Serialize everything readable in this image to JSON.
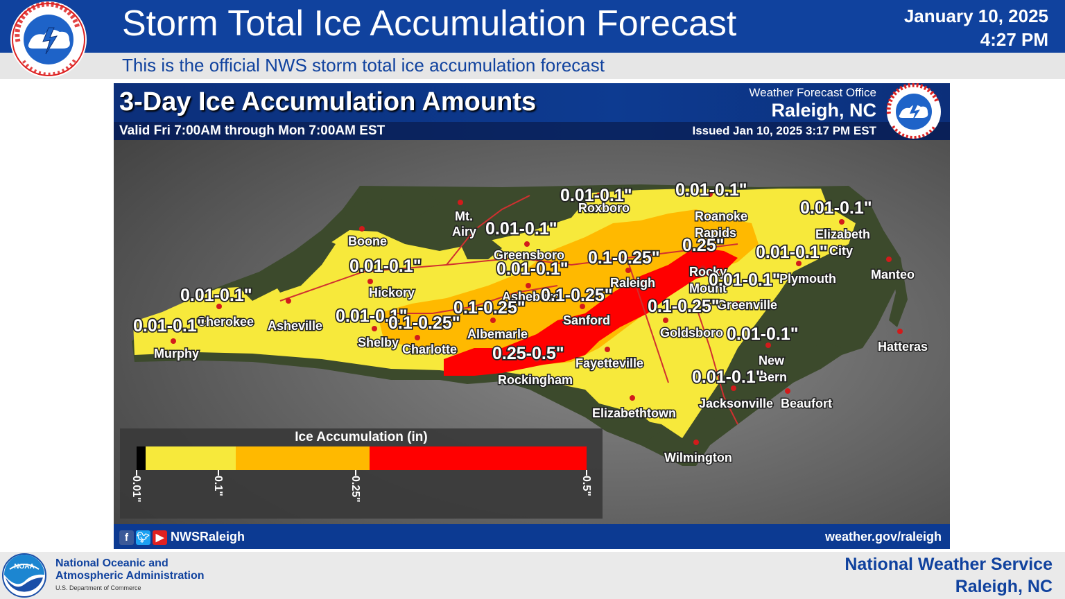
{
  "banner": {
    "title": "Storm Total Ice Accumulation Forecast",
    "date": "January 10, 2025",
    "time": "4:27 PM",
    "subtitle": "This is the official NWS storm total ice accumulation forecast",
    "color": "#10429e"
  },
  "graphic": {
    "title": "3-Day Ice Accumulation Amounts",
    "valid": "Valid Fri 7:00AM through Mon 7:00AM EST",
    "office_label": "Weather Forecast Office",
    "office_city": "Raleigh, NC",
    "issued": "Issued Jan 10, 2025 3:17 PM EST",
    "social_handle": "NWSRaleigh",
    "website": "weather.gov/raleigh",
    "social_icons": [
      "facebook-icon",
      "twitter-icon",
      "youtube-icon"
    ]
  },
  "map": {
    "cities": [
      "Mt.",
      "Airy",
      "Boone",
      "Roxboro",
      "Roanoke",
      "Rapids",
      "Elizabeth",
      "City",
      "Greensboro",
      "Hickory",
      "Raleigh",
      "Rocky",
      "Mount",
      "Plymouth",
      "Manteo",
      "Asheboro",
      "Greenville",
      "Cherokee",
      "Asheville",
      "Sanford",
      "Shelby",
      "Charlotte",
      "Albemarle",
      "Goldsboro",
      "Murphy",
      "Hatteras",
      "New",
      "Bern",
      "Fayetteville",
      "Rockingham",
      "Jacksonville",
      "Beaufort",
      "Elizabethtown",
      "Wilmington"
    ],
    "amounts": [
      "0.01-0.1\"",
      "0.01-0.1\"",
      "0.01-0.1\"",
      "0.01-0.1\"",
      "0.25\"",
      "0.01-0.1\"",
      "0.1-0.25\"",
      "0.01-0.1\"",
      "0.01-0.1\"",
      "0.01-0.1\"",
      "0.1-0.25\"",
      "0.01-0.1\"",
      "0.1-0.25\"",
      "0.01-0.1\"",
      "0.1-0.25\"",
      "0.01-0.1\"",
      "0.1-0.25\"",
      "0.01-0.1\"",
      "0.25-0.5\"",
      "0.01-0.1\""
    ],
    "legend": {
      "title": "Ice Accumulation (in)",
      "ticks": [
        "0.01\"",
        "0.1\"",
        "0.25\"",
        "0.5\""
      ],
      "colors": [
        "#000000",
        "#f7e93b",
        "#ffb900",
        "#ff0000"
      ]
    },
    "land_color": "#3b4a2c"
  },
  "footer": {
    "noaa_line1": "National Oceanic and",
    "noaa_line2": "Atmospheric Administration",
    "noaa_dept": "U.S. Department of Commerce",
    "nws_line1": "National Weather Service",
    "nws_line2": "Raleigh, NC"
  }
}
